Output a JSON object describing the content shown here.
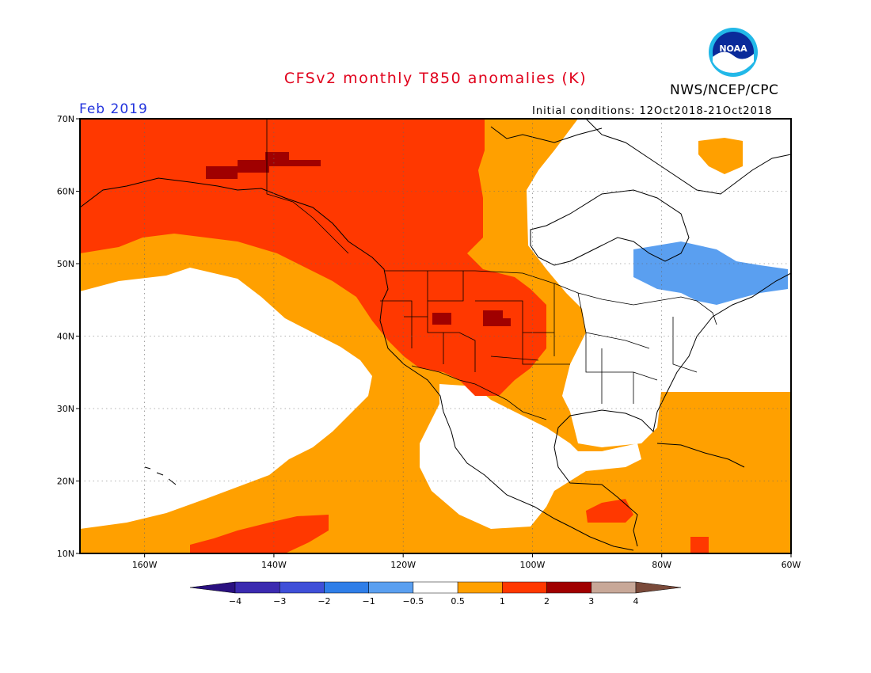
{
  "header": {
    "title": "CFSv2 monthly T850 anomalies (K)",
    "agency": "NWS/NCEP/CPC",
    "logo_text": "NOAA",
    "month": "Feb 2019",
    "initial_conditions": "Initial conditions: 12Oct2018-21Oct2018"
  },
  "colors": {
    "title": "#e0001b",
    "month": "#2233dd",
    "c_-4_-3": "#3b2ab0",
    "c_-3_-2": "#3f4fd8",
    "c_-2_-1": "#2f7ee8",
    "c_-1_-0.5": "#5a9ff0",
    "c_-0.5_0.5": "#ffffff",
    "c_0.5_1": "#ffa000",
    "c_1_2": "#ff3800",
    "c_2_3": "#a00000",
    "c_3_4": "#c8a898",
    "c_gt4": "#7a4a3a",
    "c_lt-4": "#2a1080"
  },
  "map": {
    "lon_range": [
      -170,
      -60
    ],
    "lat_range": [
      10,
      70
    ],
    "lat_ticks": [
      "70N",
      "60N",
      "50N",
      "40N",
      "30N",
      "20N",
      "10N"
    ],
    "lon_ticks": [
      "160W",
      "140W",
      "120W",
      "100W",
      "80W",
      "60W"
    ]
  },
  "legend": {
    "levels": [
      "-4",
      "-3",
      "-2",
      "-1",
      "-0.5",
      "0.5",
      "1",
      "2",
      "3",
      "4"
    ]
  }
}
